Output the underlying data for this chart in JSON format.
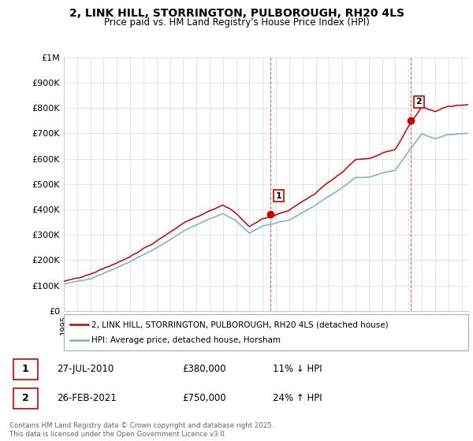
{
  "title_line1": "2, LINK HILL, STORRINGTON, PULBOROUGH, RH20 4LS",
  "title_line2": "Price paid vs. HM Land Registry's House Price Index (HPI)",
  "ylim": [
    0,
    1000000
  ],
  "yticks": [
    0,
    100000,
    200000,
    300000,
    400000,
    500000,
    600000,
    700000,
    800000,
    900000,
    1000000
  ],
  "ytick_labels": [
    "£0",
    "£100K",
    "£200K",
    "£300K",
    "£400K",
    "£500K",
    "£600K",
    "£700K",
    "£800K",
    "£900K",
    "£1M"
  ],
  "sale1_date": 2010.57,
  "sale1_price": 380000,
  "sale1_label": "1",
  "sale2_date": 2021.15,
  "sale2_price": 750000,
  "sale2_label": "2",
  "line_color_property": "#cc0000",
  "line_color_hpi": "#7aadd4",
  "background_color": "#ffffff",
  "grid_color": "#e0e0e0",
  "legend_label_property": "2, LINK HILL, STORRINGTON, PULBOROUGH, RH20 4LS (detached house)",
  "legend_label_hpi": "HPI: Average price, detached house, Horsham",
  "table_row1": [
    "1",
    "27-JUL-2010",
    "£380,000",
    "11% ↓ HPI"
  ],
  "table_row2": [
    "2",
    "26-FEB-2021",
    "£750,000",
    "24% ↑ HPI"
  ],
  "footnote": "Contains HM Land Registry data © Crown copyright and database right 2025.\nThis data is licensed under the Open Government Licence v3.0.",
  "xmin": 1995,
  "xmax": 2025.5,
  "hpi_anchors_y": [
    1995,
    1997,
    2000,
    2002,
    2004,
    2006,
    2007,
    2008,
    2009,
    2010,
    2012,
    2014,
    2016,
    2017,
    2018,
    2019,
    2020,
    2021,
    2022,
    2023,
    2024,
    2025.5
  ],
  "hpi_anchors_v": [
    105000,
    128000,
    198000,
    252000,
    318000,
    368000,
    388000,
    358000,
    308000,
    338000,
    358000,
    418000,
    488000,
    528000,
    528000,
    543000,
    553000,
    628000,
    698000,
    678000,
    693000,
    698000
  ]
}
